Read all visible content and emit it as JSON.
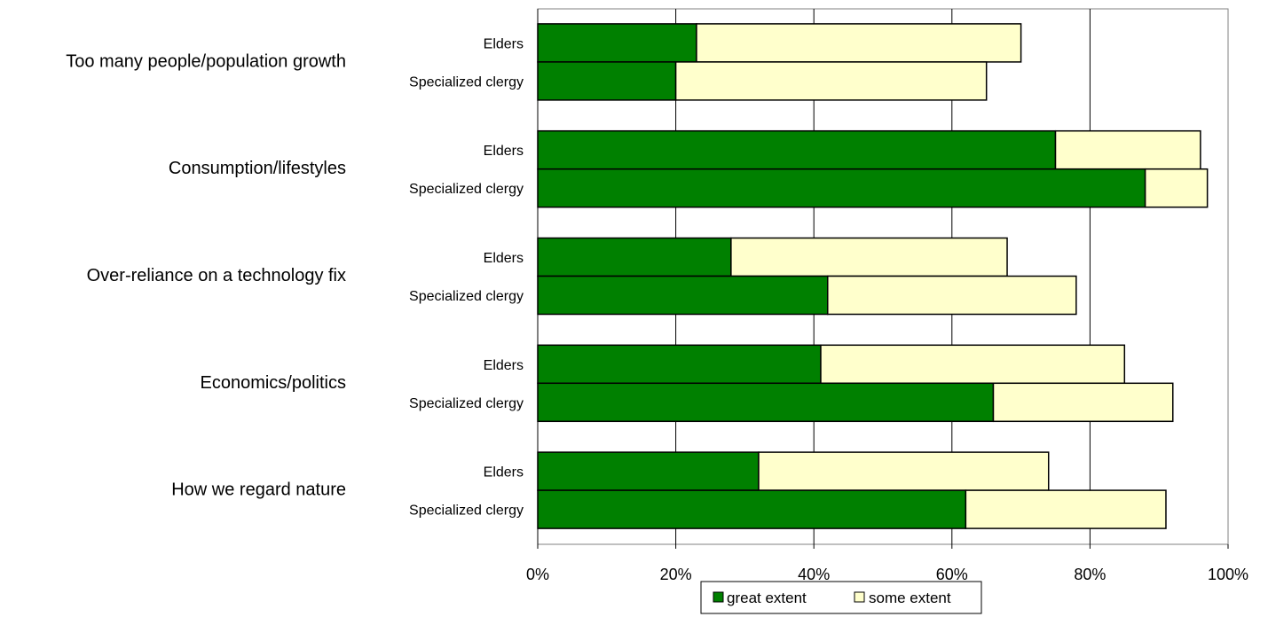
{
  "chart_data": {
    "type": "bar",
    "orientation": "horizontal",
    "stacked": true,
    "categories": [
      "Too many people/population growth",
      "Consumption/lifestyles",
      "Over-reliance on a technology fix",
      "Economics/politics",
      "How we regard nature"
    ],
    "groups": [
      "Elders",
      "Specialized clergy"
    ],
    "series": [
      {
        "name": "great extent",
        "color": "#008000",
        "values": [
          [
            23,
            20
          ],
          [
            75,
            88
          ],
          [
            28,
            42
          ],
          [
            41,
            66
          ],
          [
            32,
            62
          ]
        ]
      },
      {
        "name": "some extent",
        "color": "#FFFFCC",
        "values": [
          [
            47,
            45
          ],
          [
            21,
            9
          ],
          [
            40,
            36
          ],
          [
            44,
            26
          ],
          [
            42,
            29
          ]
        ]
      }
    ],
    "xlim": [
      0,
      100
    ],
    "xticks": [
      "0%",
      "20%",
      "40%",
      "60%",
      "80%",
      "100%"
    ],
    "grid": true,
    "legend_position": "bottom"
  }
}
